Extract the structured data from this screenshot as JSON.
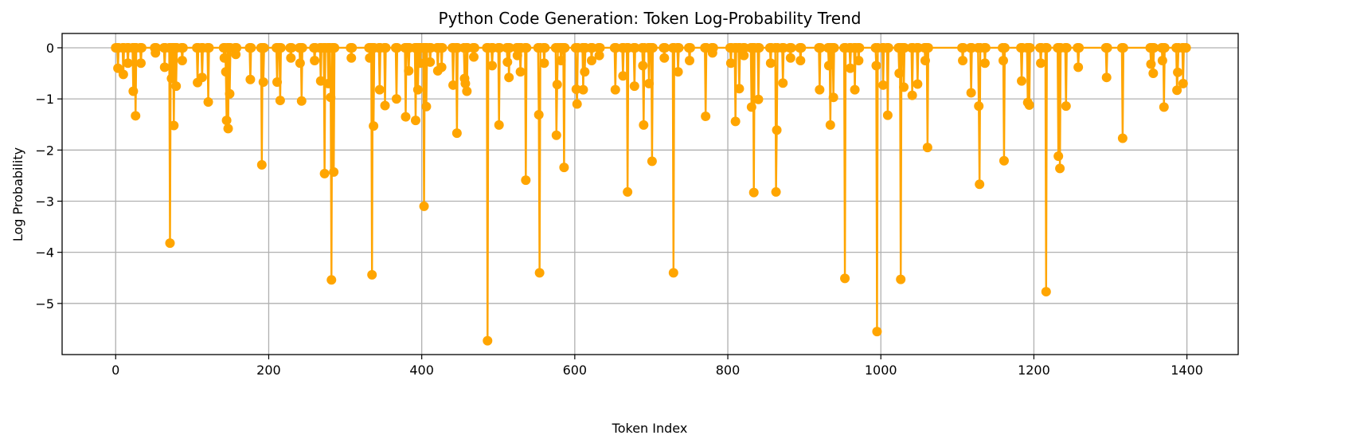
{
  "chart_data": {
    "type": "line",
    "title": "Python Code Generation: Token Log-Probability Trend",
    "x_label": "Token Index",
    "y_label": "Log Probability",
    "xlim": [
      -70,
      1467
    ],
    "ylim": [
      -6.0,
      0.28
    ],
    "xticks": [
      0,
      200,
      400,
      600,
      800,
      1000,
      1200,
      1400
    ],
    "yticks": [
      0,
      {
        "value": -1,
        "label": "−1"
      },
      {
        "value": -2,
        "label": "−2"
      },
      {
        "value": -3,
        "label": "−3"
      },
      {
        "value": -4,
        "label": "−4"
      },
      {
        "value": -5,
        "label": "−5"
      }
    ],
    "grid": true,
    "color": "#ffa500",
    "x": [
      0,
      2,
      3,
      4,
      9,
      10,
      11,
      15,
      16,
      17,
      22,
      23,
      24,
      25,
      26,
      27,
      32,
      33,
      34,
      51,
      52,
      53,
      63,
      64,
      65,
      70,
      71,
      72,
      73,
      74,
      75,
      76,
      77,
      78,
      79,
      80,
      86,
      87,
      88,
      106,
      107,
      108,
      112,
      113,
      114,
      120,
      121,
      122,
      141,
      142,
      143,
      144,
      145,
      146,
      147,
      148,
      149,
      150,
      156,
      157,
      158,
      175,
      176,
      177,
      190,
      191,
      192,
      193,
      194,
      210,
      211,
      212,
      214,
      215,
      216,
      228,
      229,
      230,
      240,
      241,
      242,
      243,
      244,
      259,
      260,
      261,
      267,
      268,
      269,
      272,
      273,
      274,
      277,
      278,
      279,
      280,
      281,
      282,
      283,
      284,
      285,
      286,
      307,
      308,
      309,
      331,
      332,
      333,
      334,
      335,
      336,
      337,
      338,
      344,
      345,
      346,
      351,
      352,
      353,
      366,
      367,
      368,
      378,
      379,
      380,
      381,
      382,
      383,
      384,
      391,
      392,
      393,
      394,
      395,
      396,
      397,
      398,
      399,
      402,
      403,
      404,
      405,
      406,
      407,
      410,
      411,
      412,
      420,
      421,
      422,
      425,
      426,
      427,
      440,
      441,
      442,
      445,
      446,
      447,
      455,
      456,
      457,
      458,
      459,
      460,
      467,
      468,
      469,
      485,
      486,
      487,
      491,
      492,
      493,
      500,
      501,
      502,
      511,
      512,
      513,
      514,
      515,
      524,
      525,
      526,
      528,
      529,
      530,
      535,
      536,
      537,
      552,
      553,
      554,
      555,
      559,
      560,
      561,
      575,
      576,
      577,
      578,
      581,
      582,
      583,
      585,
      586,
      587,
      601,
      602,
      603,
      604,
      610,
      611,
      612,
      613,
      614,
      621,
      622,
      623,
      631,
      632,
      633,
      652,
      653,
      654,
      662,
      663,
      664,
      668,
      669,
      670,
      677,
      678,
      679,
      688,
      689,
      690,
      691,
      696,
      697,
      698,
      700,
      701,
      702,
      716,
      717,
      718,
      728,
      729,
      730,
      734,
      735,
      736,
      749,
      750,
      751,
      770,
      771,
      772,
      779,
      780,
      781,
      803,
      804,
      805,
      809,
      810,
      811,
      814,
      815,
      816,
      820,
      821,
      822,
      830,
      831,
      832,
      833,
      834,
      835,
      839,
      840,
      841,
      855,
      856,
      857,
      862,
      863,
      864,
      865,
      871,
      872,
      873,
      881,
      882,
      883,
      894,
      895,
      896,
      919,
      920,
      921,
      931,
      932,
      933,
      934,
      935,
      937,
      938,
      939,
      952,
      953,
      954,
      959,
      960,
      961,
      965,
      966,
      967,
      970,
      971,
      972,
      993,
      994,
      995,
      996,
      1002,
      1003,
      1004,
      1008,
      1009,
      1010,
      1023,
      1024,
      1025,
      1026,
      1027,
      1029,
      1030,
      1031,
      1040,
      1041,
      1042,
      1047,
      1048,
      1049,
      1057,
      1058,
      1059,
      1060,
      1061,
      1062,
      1106,
      1107,
      1108,
      1117,
      1118,
      1119,
      1127,
      1128,
      1129,
      1130,
      1135,
      1136,
      1137,
      1159,
      1160,
      1161,
      1162,
      1183,
      1184,
      1185,
      1191,
      1192,
      1193,
      1194,
      1195,
      1208,
      1209,
      1210,
      1215,
      1216,
      1217,
      1231,
      1232,
      1233,
      1234,
      1235,
      1241,
      1242,
      1243,
      1257,
      1258,
      1259,
      1294,
      1295,
      1296,
      1315,
      1316,
      1317,
      1352,
      1353,
      1354,
      1355,
      1356,
      1357,
      1367,
      1368,
      1369,
      1370,
      1371,
      1386,
      1387,
      1388,
      1389,
      1394,
      1395,
      1396,
      1399
    ],
    "values": [
      0,
      0,
      -0.4,
      0,
      0,
      -0.52,
      0,
      0,
      -0.3,
      0,
      0,
      -0.85,
      0,
      0,
      -1.33,
      0,
      0,
      -0.3,
      0,
      0,
      -0.1,
      0,
      0,
      -0.38,
      0,
      0,
      -3.82,
      0,
      -0.6,
      0,
      0,
      -1.52,
      0,
      0,
      -0.75,
      0,
      0,
      -0.25,
      0,
      0,
      -0.68,
      0,
      0,
      -0.58,
      0,
      0,
      -1.06,
      0,
      0,
      -0.2,
      0,
      -0.47,
      -1.42,
      0,
      -1.58,
      0,
      -0.9,
      0,
      0,
      -0.13,
      0,
      0,
      -0.62,
      0,
      0,
      -2.29,
      0,
      -0.67,
      0,
      0,
      -0.67,
      0,
      0,
      -1.03,
      0,
      0,
      -0.2,
      0,
      0,
      -0.3,
      0,
      -1.04,
      0,
      0,
      -0.25,
      0,
      0,
      -0.65,
      0,
      0,
      -2.46,
      0,
      0,
      -0.7,
      0,
      0,
      -0.97,
      -4.54,
      0,
      0,
      -2.43,
      0,
      0,
      -0.2,
      0,
      0,
      -0.2,
      0,
      0,
      -4.44,
      0,
      -1.53,
      0,
      0,
      -0.82,
      0,
      0,
      -1.13,
      0,
      0,
      -1.0,
      0,
      0,
      -1.35,
      0,
      0,
      0,
      -0.45,
      0,
      0,
      -1.42,
      0,
      0,
      -0.82,
      0,
      0,
      -0.3,
      0,
      0,
      -3.1,
      0,
      0,
      -1.15,
      0,
      0,
      -0.28,
      0,
      0,
      -0.45,
      0,
      0,
      -0.38,
      0,
      0,
      -0.73,
      0,
      0,
      -1.67,
      0,
      0,
      -0.6,
      -0.7,
      0,
      -0.85,
      0,
      0,
      -0.18,
      0,
      0,
      -5.73,
      0,
      0,
      -0.35,
      0,
      0,
      -1.51,
      0,
      0,
      -0.28,
      0,
      -0.58,
      0,
      0,
      -0.15,
      0,
      0,
      -0.47,
      0,
      0,
      -2.59,
      0,
      0,
      -1.31,
      -4.4,
      0,
      0,
      -0.3,
      0,
      0,
      -1.71,
      -0.72,
      0,
      0,
      -0.25,
      0,
      0,
      -2.34,
      0,
      0,
      -0.81,
      -1.1,
      0,
      0,
      -0.82,
      0,
      -0.47,
      0,
      0,
      -0.25,
      0,
      0,
      -0.15,
      0,
      0,
      -0.82,
      0,
      0,
      -0.55,
      0,
      0,
      -2.82,
      0,
      0,
      -0.75,
      0,
      0,
      -0.35,
      -1.51,
      0,
      0,
      -0.7,
      0,
      0,
      -2.22,
      0,
      0,
      -0.2,
      0,
      0,
      -4.4,
      0,
      0,
      -0.47,
      0,
      0,
      -0.25,
      0,
      0,
      -1.34,
      0,
      0,
      -0.1,
      0,
      0,
      -0.3,
      0,
      0,
      -1.44,
      0,
      0,
      -0.8,
      0,
      0,
      -0.15,
      0,
      0,
      -1.16,
      0,
      0,
      -2.83,
      0,
      0,
      -1.01,
      0,
      0,
      -0.3,
      0,
      0,
      -2.82,
      -1.61,
      0,
      0,
      -0.69,
      0,
      0,
      -0.2,
      0,
      0,
      -0.25,
      0,
      0,
      -0.82,
      0,
      0,
      -0.35,
      0,
      -1.51,
      0,
      0,
      -0.97,
      0,
      0,
      -4.51,
      0,
      0,
      -0.4,
      0,
      0,
      -0.82,
      0,
      0,
      -0.25,
      0,
      0,
      -0.35,
      -5.55,
      0,
      0,
      -0.73,
      0,
      0,
      -1.32,
      0,
      0,
      -0.5,
      0,
      -4.53,
      0,
      0,
      -0.77,
      0,
      0,
      -0.93,
      0,
      0,
      -0.71,
      0,
      0,
      -0.25,
      0,
      0,
      -1.95,
      0,
      0,
      -0.25,
      0,
      0,
      -0.88,
      0,
      0,
      -1.14,
      -2.67,
      0,
      0,
      -0.3,
      0,
      0,
      -0.25,
      -2.21,
      0,
      0,
      -0.65,
      0,
      0,
      -1.07,
      0,
      -1.12,
      0,
      0,
      -0.3,
      0,
      0,
      -4.77,
      0,
      0,
      -2.12,
      0,
      -2.36,
      0,
      0,
      -1.14,
      0,
      0,
      -0.38,
      0,
      0,
      -0.58,
      0,
      0,
      -1.77,
      0,
      0,
      -0.32,
      0,
      0,
      -0.5,
      0,
      0,
      -0.25,
      0,
      -1.16,
      0,
      0,
      -0.83,
      -0.48,
      0,
      0,
      -0.7,
      0,
      0
    ]
  }
}
